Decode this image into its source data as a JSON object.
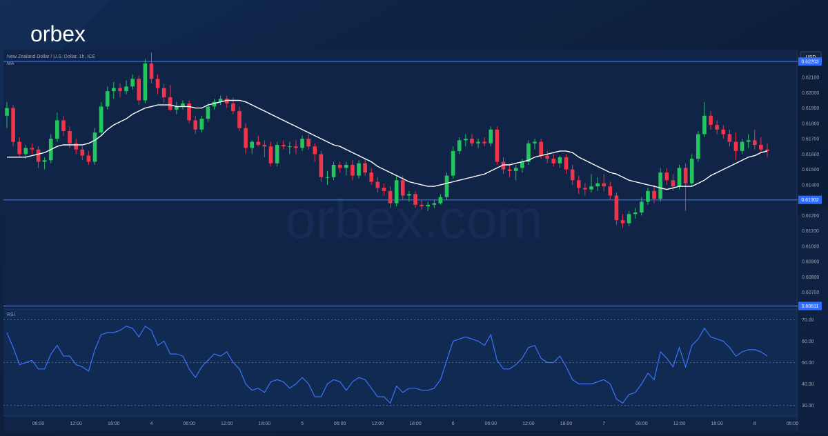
{
  "brand": {
    "logo": "orbex",
    "watermark": "orbex.com"
  },
  "colors": {
    "background": "#0d1f3c",
    "panel": "#0f2447",
    "bull": "#22c55e",
    "bear": "#f0344a",
    "level": "#2f6bff",
    "ma": "#ffffff",
    "rsi": "#3a73ff",
    "text": "#9aa3b5"
  },
  "chart_data": [
    {
      "type": "candlestick",
      "title": "New Zealand Dollar / U.S. Dollar, 1h, ICE",
      "indicator_label": "MA",
      "currency_label": "USD",
      "ylim": [
        0.606,
        0.6228
      ],
      "y_ticks": [
        "0.62100",
        "0.62000",
        "0.61900",
        "0.61800",
        "0.61700",
        "0.61600",
        "0.61500",
        "0.61400",
        "0.61200",
        "0.61100",
        "0.61000",
        "0.60900",
        "0.60800",
        "0.60700"
      ],
      "x_ticks": [
        {
          "label": "06:00",
          "i": 5
        },
        {
          "label": "12:00",
          "i": 11
        },
        {
          "label": "18:00",
          "i": 17
        },
        {
          "label": "4",
          "i": 23
        },
        {
          "label": "06:00",
          "i": 29
        },
        {
          "label": "12:00",
          "i": 35
        },
        {
          "label": "18:00",
          "i": 41
        },
        {
          "label": "5",
          "i": 47
        },
        {
          "label": "06:00",
          "i": 53
        },
        {
          "label": "12:00",
          "i": 59
        },
        {
          "label": "18:00",
          "i": 65
        },
        {
          "label": "6",
          "i": 71
        },
        {
          "label": "06:00",
          "i": 77
        },
        {
          "label": "12:00",
          "i": 83
        },
        {
          "label": "18:00",
          "i": 89
        },
        {
          "label": "7",
          "i": 95
        },
        {
          "label": "06:00",
          "i": 101
        },
        {
          "label": "12:00",
          "i": 107
        },
        {
          "label": "18:00",
          "i": 113
        },
        {
          "label": "8",
          "i": 119
        },
        {
          "label": "06:00",
          "i": 125
        }
      ],
      "levels": [
        {
          "value": 0.62203,
          "label": "0.62203"
        },
        {
          "value": 0.61302,
          "label": "0.61302"
        },
        {
          "value": 0.60611,
          "label": "0.60611"
        }
      ],
      "candles": [
        [
          0.6185,
          0.6194,
          0.6177,
          0.619
        ],
        [
          0.619,
          0.6192,
          0.6165,
          0.6168
        ],
        [
          0.6168,
          0.6171,
          0.6158,
          0.616
        ],
        [
          0.616,
          0.6166,
          0.6157,
          0.6164
        ],
        [
          0.6164,
          0.6167,
          0.616,
          0.6163
        ],
        [
          0.6163,
          0.6165,
          0.6151,
          0.6155
        ],
        [
          0.6155,
          0.6158,
          0.615,
          0.6156
        ],
        [
          0.6156,
          0.6173,
          0.6154,
          0.617
        ],
        [
          0.617,
          0.6187,
          0.6168,
          0.6182
        ],
        [
          0.6182,
          0.6185,
          0.6172,
          0.6175
        ],
        [
          0.6175,
          0.6178,
          0.6164,
          0.6167
        ],
        [
          0.6167,
          0.617,
          0.616,
          0.6163
        ],
        [
          0.6163,
          0.6165,
          0.6156,
          0.6159
        ],
        [
          0.6159,
          0.6162,
          0.6153,
          0.6155
        ],
        [
          0.6155,
          0.6177,
          0.6153,
          0.6174
        ],
        [
          0.6174,
          0.6194,
          0.6172,
          0.6191
        ],
        [
          0.6191,
          0.6204,
          0.6189,
          0.6201
        ],
        [
          0.6201,
          0.6207,
          0.6196,
          0.6203
        ],
        [
          0.6203,
          0.6206,
          0.6197,
          0.6201
        ],
        [
          0.6201,
          0.6208,
          0.6199,
          0.6204
        ],
        [
          0.6204,
          0.6212,
          0.6202,
          0.6209
        ],
        [
          0.6209,
          0.6211,
          0.6192,
          0.6195
        ],
        [
          0.6195,
          0.6222,
          0.6193,
          0.6219
        ],
        [
          0.6219,
          0.6226,
          0.6206,
          0.6209
        ],
        [
          0.6209,
          0.6212,
          0.6199,
          0.6203
        ],
        [
          0.6203,
          0.6206,
          0.6193,
          0.6197
        ],
        [
          0.6197,
          0.6205,
          0.6188,
          0.6189
        ],
        [
          0.6189,
          0.6194,
          0.6186,
          0.6191
        ],
        [
          0.6191,
          0.6195,
          0.6189,
          0.6193
        ],
        [
          0.6193,
          0.6195,
          0.618,
          0.6182
        ],
        [
          0.6182,
          0.6185,
          0.6173,
          0.6176
        ],
        [
          0.6176,
          0.6185,
          0.6174,
          0.6183
        ],
        [
          0.6183,
          0.6193,
          0.6181,
          0.6191
        ],
        [
          0.6191,
          0.6196,
          0.6189,
          0.6194
        ],
        [
          0.6194,
          0.6198,
          0.6192,
          0.6196
        ],
        [
          0.6196,
          0.6198,
          0.619,
          0.6193
        ],
        [
          0.6193,
          0.6197,
          0.6186,
          0.6188
        ],
        [
          0.6188,
          0.6191,
          0.6175,
          0.6177
        ],
        [
          0.6177,
          0.618,
          0.616,
          0.6164
        ],
        [
          0.6164,
          0.6169,
          0.616,
          0.6168
        ],
        [
          0.6168,
          0.6172,
          0.6165,
          0.6166
        ],
        [
          0.6166,
          0.6169,
          0.6158,
          0.6165
        ],
        [
          0.6165,
          0.6168,
          0.6152,
          0.6154
        ],
        [
          0.6154,
          0.6168,
          0.6152,
          0.6166
        ],
        [
          0.6166,
          0.6169,
          0.6163,
          0.6165
        ],
        [
          0.6165,
          0.6168,
          0.616,
          0.6165
        ],
        [
          0.6165,
          0.6169,
          0.616,
          0.6164
        ],
        [
          0.6164,
          0.6172,
          0.6162,
          0.617
        ],
        [
          0.617,
          0.6173,
          0.6163,
          0.6165
        ],
        [
          0.6165,
          0.6167,
          0.6155,
          0.616
        ],
        [
          0.616,
          0.6162,
          0.6142,
          0.6145
        ],
        [
          0.6145,
          0.6149,
          0.614,
          0.6145
        ],
        [
          0.6145,
          0.6155,
          0.6143,
          0.6153
        ],
        [
          0.6153,
          0.6155,
          0.6148,
          0.6151
        ],
        [
          0.6151,
          0.6155,
          0.6146,
          0.6153
        ],
        [
          0.6153,
          0.6156,
          0.6143,
          0.6146
        ],
        [
          0.6146,
          0.6156,
          0.6144,
          0.6154
        ],
        [
          0.6154,
          0.6157,
          0.6146,
          0.6148
        ],
        [
          0.6148,
          0.6151,
          0.614,
          0.6142
        ],
        [
          0.6142,
          0.6145,
          0.6135,
          0.6138
        ],
        [
          0.6138,
          0.6141,
          0.6133,
          0.6136
        ],
        [
          0.6136,
          0.6139,
          0.6125,
          0.6128
        ],
        [
          0.6128,
          0.6146,
          0.6126,
          0.6143
        ],
        [
          0.6143,
          0.6146,
          0.613,
          0.6133
        ],
        [
          0.6133,
          0.6136,
          0.6129,
          0.6134
        ],
        [
          0.6134,
          0.6136,
          0.6125,
          0.6127
        ],
        [
          0.6127,
          0.613,
          0.6124,
          0.6126
        ],
        [
          0.6126,
          0.6129,
          0.6123,
          0.6127
        ],
        [
          0.6127,
          0.613,
          0.6125,
          0.6128
        ],
        [
          0.6128,
          0.6134,
          0.6127,
          0.6132
        ],
        [
          0.6132,
          0.6148,
          0.613,
          0.6146
        ],
        [
          0.6146,
          0.6165,
          0.6144,
          0.6162
        ],
        [
          0.6162,
          0.6171,
          0.616,
          0.6169
        ],
        [
          0.6169,
          0.6173,
          0.6165,
          0.617
        ],
        [
          0.617,
          0.6173,
          0.6165,
          0.6167
        ],
        [
          0.6167,
          0.617,
          0.6164,
          0.6168
        ],
        [
          0.6168,
          0.6171,
          0.6165,
          0.6167
        ],
        [
          0.6167,
          0.6178,
          0.6165,
          0.6176
        ],
        [
          0.6176,
          0.6178,
          0.6153,
          0.6155
        ],
        [
          0.6155,
          0.6158,
          0.6147,
          0.615
        ],
        [
          0.615,
          0.6154,
          0.6145,
          0.6149
        ],
        [
          0.6149,
          0.6153,
          0.6143,
          0.6151
        ],
        [
          0.6151,
          0.6157,
          0.6148,
          0.6155
        ],
        [
          0.6155,
          0.6169,
          0.6153,
          0.6167
        ],
        [
          0.6167,
          0.617,
          0.6163,
          0.6168
        ],
        [
          0.6168,
          0.617,
          0.6157,
          0.6159
        ],
        [
          0.6159,
          0.6162,
          0.6154,
          0.6157
        ],
        [
          0.6157,
          0.616,
          0.6152,
          0.6154
        ],
        [
          0.6154,
          0.6159,
          0.6151,
          0.6158
        ],
        [
          0.6158,
          0.616,
          0.6147,
          0.615
        ],
        [
          0.615,
          0.6153,
          0.614,
          0.6143
        ],
        [
          0.6143,
          0.6146,
          0.6134,
          0.6138
        ],
        [
          0.6138,
          0.6141,
          0.6133,
          0.6137
        ],
        [
          0.6137,
          0.6147,
          0.6135,
          0.6139
        ],
        [
          0.6139,
          0.6145,
          0.6136,
          0.6141
        ],
        [
          0.6141,
          0.6147,
          0.6136,
          0.6139
        ],
        [
          0.6139,
          0.6142,
          0.613,
          0.6133
        ],
        [
          0.6133,
          0.6135,
          0.6114,
          0.6117
        ],
        [
          0.6117,
          0.6121,
          0.6112,
          0.6115
        ],
        [
          0.6115,
          0.6123,
          0.6113,
          0.6121
        ],
        [
          0.6121,
          0.6125,
          0.6118,
          0.6122
        ],
        [
          0.6122,
          0.6132,
          0.612,
          0.6129
        ],
        [
          0.6129,
          0.6138,
          0.6127,
          0.6136
        ],
        [
          0.6136,
          0.614,
          0.6128,
          0.6131
        ],
        [
          0.6131,
          0.6151,
          0.6129,
          0.6148
        ],
        [
          0.6148,
          0.6151,
          0.614,
          0.6143
        ],
        [
          0.6143,
          0.6147,
          0.6136,
          0.6139
        ],
        [
          0.6139,
          0.6153,
          0.6137,
          0.6151
        ],
        [
          0.6151,
          0.6154,
          0.6123,
          0.6141
        ],
        [
          0.6141,
          0.616,
          0.6139,
          0.6157
        ],
        [
          0.6157,
          0.6175,
          0.6155,
          0.6173
        ],
        [
          0.6173,
          0.6194,
          0.6171,
          0.6185
        ],
        [
          0.6185,
          0.6188,
          0.6176,
          0.6179
        ],
        [
          0.6179,
          0.6182,
          0.6173,
          0.6176
        ],
        [
          0.6176,
          0.6179,
          0.617,
          0.6173
        ],
        [
          0.6173,
          0.6176,
          0.6165,
          0.6168
        ],
        [
          0.6168,
          0.6174,
          0.6156,
          0.6162
        ],
        [
          0.6162,
          0.617,
          0.616,
          0.6168
        ],
        [
          0.6168,
          0.6173,
          0.6164,
          0.6169
        ],
        [
          0.6169,
          0.6176,
          0.6163,
          0.6166
        ],
        [
          0.6166,
          0.6171,
          0.6161,
          0.6163
        ],
        [
          0.6163,
          0.6167,
          0.6158,
          0.6162
        ]
      ],
      "ma": [
        0.6158,
        0.6158,
        0.6158,
        0.6158,
        0.6159,
        0.616,
        0.6161,
        0.6163,
        0.6165,
        0.6166,
        0.6166,
        0.6166,
        0.6166,
        0.6167,
        0.6169,
        0.6172,
        0.6176,
        0.6179,
        0.6181,
        0.6183,
        0.6186,
        0.6188,
        0.619,
        0.6191,
        0.6192,
        0.6192,
        0.6192,
        0.6191,
        0.6191,
        0.6191,
        0.619,
        0.619,
        0.6192,
        0.6193,
        0.6194,
        0.6195,
        0.6195,
        0.6195,
        0.6194,
        0.6192,
        0.619,
        0.6188,
        0.6186,
        0.6184,
        0.6182,
        0.618,
        0.6178,
        0.6176,
        0.6174,
        0.6172,
        0.617,
        0.6168,
        0.6166,
        0.6165,
        0.6163,
        0.6161,
        0.6159,
        0.6157,
        0.6155,
        0.6152,
        0.615,
        0.6148,
        0.6146,
        0.6144,
        0.6142,
        0.6141,
        0.614,
        0.6139,
        0.6139,
        0.614,
        0.6141,
        0.6142,
        0.6143,
        0.6144,
        0.6145,
        0.6146,
        0.6147,
        0.6149,
        0.6151,
        0.6153,
        0.6153,
        0.6154,
        0.6155,
        0.6156,
        0.6158,
        0.6159,
        0.616,
        0.6161,
        0.6162,
        0.6162,
        0.6161,
        0.6158,
        0.6156,
        0.6154,
        0.6152,
        0.615,
        0.6148,
        0.6147,
        0.6145,
        0.6143,
        0.6142,
        0.6141,
        0.614,
        0.6139,
        0.6138,
        0.6137,
        0.6138,
        0.6139,
        0.6139,
        0.6139,
        0.6141,
        0.6143,
        0.6146,
        0.6148,
        0.615,
        0.6152,
        0.6154,
        0.6156,
        0.6158,
        0.6159,
        0.6161,
        0.6162
      ]
    },
    {
      "type": "line",
      "title": "RSI",
      "ylim": [
        25,
        75
      ],
      "y_ticks": [
        "70.00",
        "60.00",
        "50.00",
        "40.00",
        "30.00"
      ],
      "dashed_levels": [
        70,
        50,
        30
      ],
      "series": [
        {
          "values": [
            64,
            57,
            49,
            50,
            51,
            47,
            47,
            54,
            58,
            53,
            53,
            49,
            48,
            46,
            56,
            63,
            64,
            64,
            65,
            67,
            66,
            62,
            67,
            65,
            58,
            60,
            54,
            54,
            53,
            47,
            43,
            48,
            51,
            54,
            53,
            55,
            50,
            47,
            40,
            37,
            38,
            36,
            41,
            42,
            41,
            38,
            40,
            43,
            40,
            34,
            34,
            40,
            42,
            41,
            37,
            41,
            43,
            42,
            38,
            34,
            34,
            31,
            39,
            36,
            38,
            38,
            37,
            37,
            38,
            42,
            51,
            60,
            61,
            62,
            61,
            60,
            58,
            63,
            51,
            47,
            47,
            49,
            52,
            57,
            58,
            52,
            50,
            50,
            53,
            48,
            42,
            40,
            40,
            40,
            41,
            42,
            40,
            33,
            31,
            35,
            36,
            40,
            45,
            42,
            55,
            52,
            48,
            57,
            48,
            58,
            61,
            66,
            62,
            61,
            60,
            57,
            53,
            55,
            56,
            56,
            55,
            53
          ]
        }
      ]
    }
  ]
}
